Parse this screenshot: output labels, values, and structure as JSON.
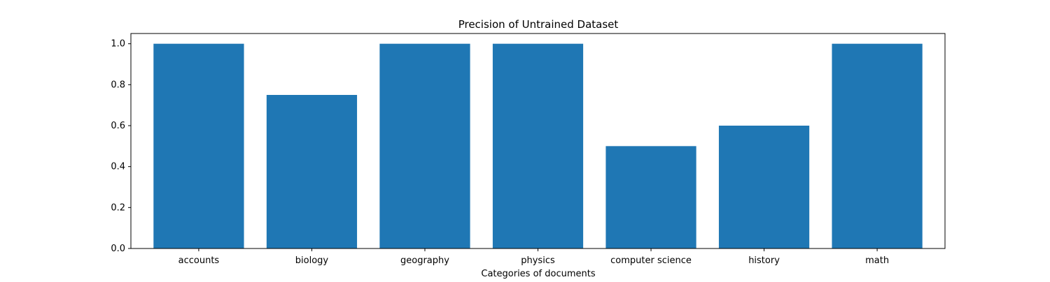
{
  "chart_data": {
    "type": "bar",
    "title": "Precision of Untrained Dataset",
    "xlabel": "Categories of documents",
    "ylabel": "",
    "categories": [
      "accounts",
      "biology",
      "geography",
      "physics",
      "computer science",
      "history",
      "math"
    ],
    "values": [
      1.0,
      0.75,
      1.0,
      1.0,
      0.5,
      0.6,
      1.0
    ],
    "ylim": [
      0,
      1.05
    ],
    "yticks": [
      "0.0",
      "0.2",
      "0.4",
      "0.6",
      "0.8",
      "1.0"
    ],
    "bar_color": "#1f77b4",
    "grid": false,
    "legend": "none"
  }
}
